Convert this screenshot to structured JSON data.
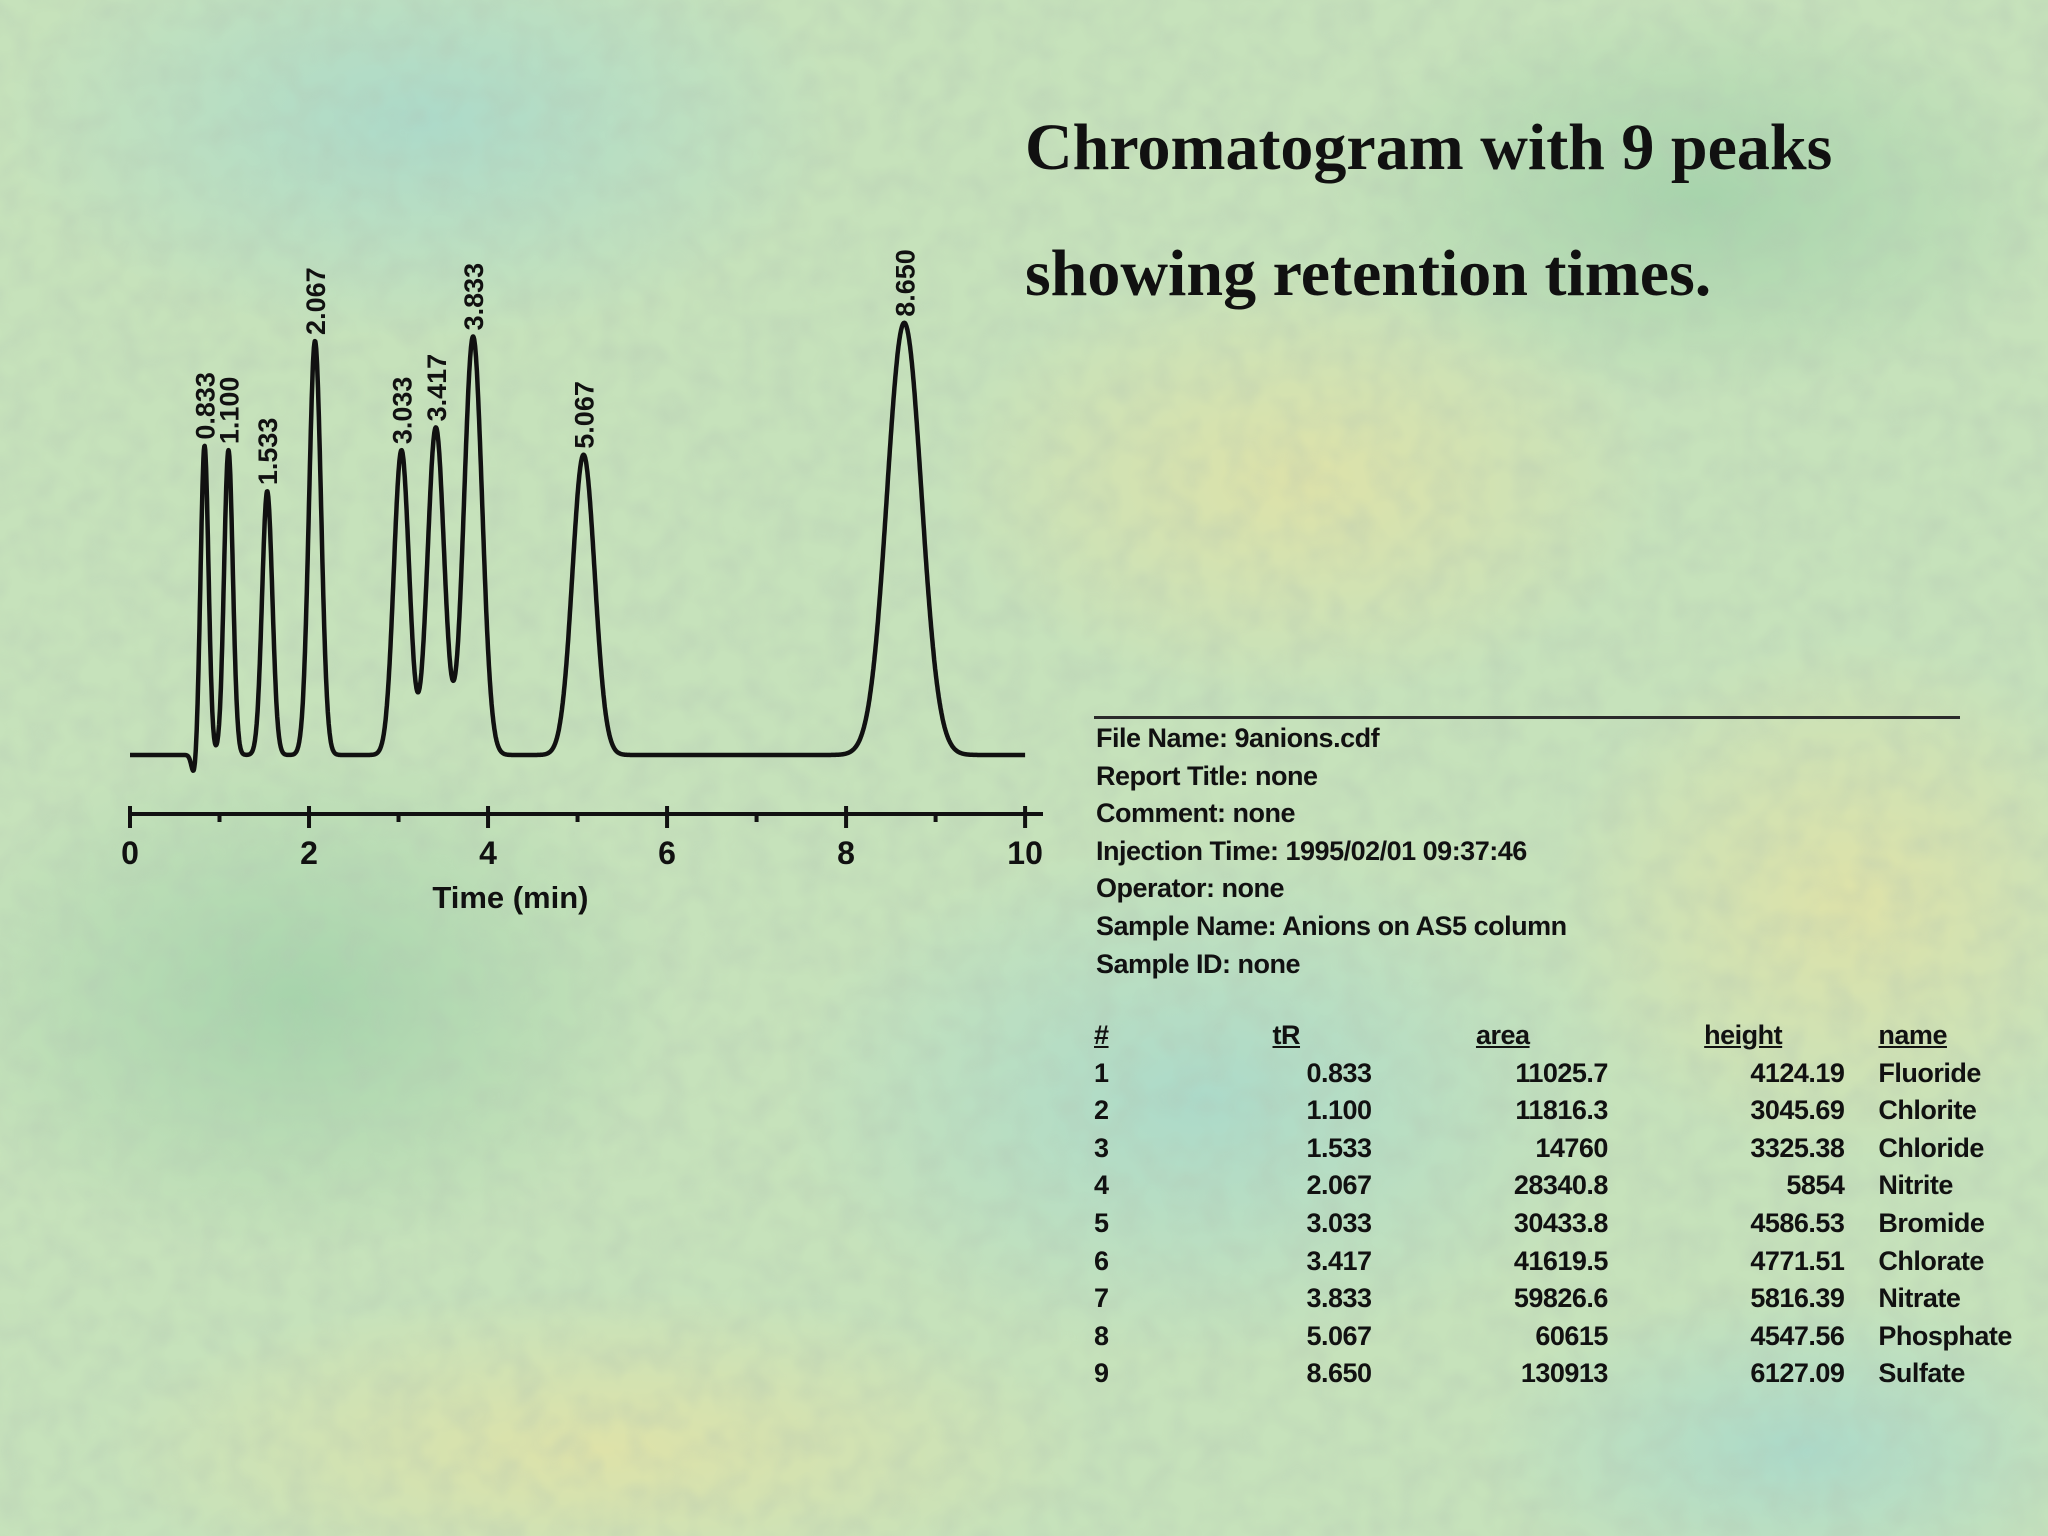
{
  "slide": {
    "title_line1": "Chromatogram with 9 peaks",
    "title_line2": "showing retention times."
  },
  "chart_data": {
    "type": "line",
    "xlabel": "Time (min)",
    "ylabel": "",
    "xlim": [
      0,
      10.2
    ],
    "x_ticks": [
      0,
      2,
      4,
      6,
      8,
      10
    ],
    "grid": false,
    "series": [
      {
        "peaks": [
          {
            "rt": 0.833,
            "label": "0.833",
            "rel_height": 0.68
          },
          {
            "rt": 1.1,
            "label": "1.100",
            "rel_height": 0.67
          },
          {
            "rt": 1.533,
            "label": "1.533",
            "rel_height": 0.58
          },
          {
            "rt": 2.067,
            "label": "2.067",
            "rel_height": 0.91
          },
          {
            "rt": 3.033,
            "label": "3.033",
            "rel_height": 0.67
          },
          {
            "rt": 3.417,
            "label": "3.417",
            "rel_height": 0.72
          },
          {
            "rt": 3.833,
            "label": "3.833",
            "rel_height": 0.92
          },
          {
            "rt": 5.067,
            "label": "5.067",
            "rel_height": 0.66
          },
          {
            "rt": 8.65,
            "label": "8.650",
            "rel_height": 0.95
          }
        ]
      }
    ]
  },
  "report": {
    "meta": [
      "File Name: 9anions.cdf",
      "Report Title: none",
      "Comment: none",
      "Injection Time: 1995/02/01  09:37:46",
      "Operator: none",
      "Sample Name: Anions on AS5 column",
      "Sample ID: none"
    ],
    "table": {
      "headers": {
        "num": "#",
        "tr": "tR",
        "area": "area",
        "height": "height",
        "name": "name"
      },
      "rows": [
        {
          "num": "1",
          "tr": "0.833",
          "area": "11025.7",
          "height": "4124.19",
          "name": "Fluoride"
        },
        {
          "num": "2",
          "tr": "1.100",
          "area": "11816.3",
          "height": "3045.69",
          "name": "Chlorite"
        },
        {
          "num": "3",
          "tr": "1.533",
          "area": "14760",
          "height": "3325.38",
          "name": "Chloride"
        },
        {
          "num": "4",
          "tr": "2.067",
          "area": "28340.8",
          "height": "5854",
          "name": "Nitrite"
        },
        {
          "num": "5",
          "tr": "3.033",
          "area": "30433.8",
          "height": "4586.53",
          "name": "Bromide"
        },
        {
          "num": "6",
          "tr": "3.417",
          "area": "41619.5",
          "height": "4771.51",
          "name": "Chlorate"
        },
        {
          "num": "7",
          "tr": "3.833",
          "area": "59826.6",
          "height": "5816.39",
          "name": "Nitrate"
        },
        {
          "num": "8",
          "tr": "5.067",
          "area": "60615",
          "height": "4547.56",
          "name": "Phosphate"
        },
        {
          "num": "9",
          "tr": "8.650",
          "area": "130913",
          "height": "6127.09",
          "name": "Sulfate"
        }
      ]
    }
  },
  "colors": {
    "ink": "#111111",
    "bg_green": "#c9e3bd",
    "bg_teal": "#a8d8c8",
    "bg_yellow": "#e0e3a6"
  }
}
